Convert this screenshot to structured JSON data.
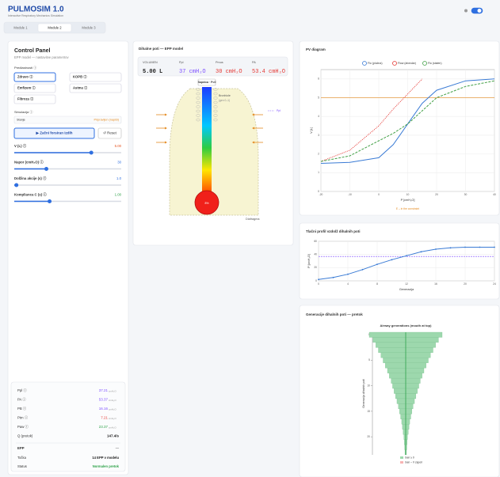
{
  "header": {
    "title": "PULMOSIM 1.0",
    "subtitle": "Interactive Respiratory Mechanics Simulation"
  },
  "tabs": [
    "Module 1",
    "Module 2",
    "Module 3"
  ],
  "control_panel": {
    "title": "Control Panel",
    "subtitle": "EPP model — nastavitve parametrov",
    "presets_label": "Predlastnosti ⓘ",
    "presets": [
      "Zdravo ⓘ",
      "KOPB ⓘ",
      "Emfizem ⓘ",
      "Astma ⓘ",
      "Fibroza ⓘ"
    ],
    "simulation_label": "Simulacija ⓘ",
    "state_label": "Stanje",
    "state_value": "Pripravljen (napiši)",
    "start_button": "▶ Začni forsiran izdih",
    "reset_button": "↺ Reset",
    "sliders": [
      {
        "label": "V (L) ⓘ",
        "value": "5.00"
      },
      {
        "label": "Napor (cmH₂O) ⓘ",
        "value": "30"
      },
      {
        "label": "Dolžina akcije (s) ⓘ",
        "value": "1.0"
      },
      {
        "label": "Komplianca C (s) ⓘ",
        "value": "1.00"
      }
    ],
    "stats": [
      {
        "label": "Ppl ⓘ",
        "value": "37.21",
        "unit": "cmH₂O"
      },
      {
        "label": "PA ⓘ",
        "value": "53.37",
        "unit": "cmH₂O"
      },
      {
        "label": "PB ⓘ",
        "value": "16.16",
        "unit": "cmH₂O"
      },
      {
        "label": "Ptm ⓘ",
        "value": "7.21",
        "unit": "cmH₂O"
      },
      {
        "label": "Paw ⓘ",
        "value": "23.37",
        "unit": "cmH₂O"
      },
      {
        "label": "Q (pretok)",
        "value": "147.4/s",
        "unit": ""
      }
    ],
    "epp": {
      "title": "EPP",
      "value": "—",
      "rows": [
        {
          "label": "Točka",
          "value": "14 EPP v modelu"
        },
        {
          "label": "Status",
          "value": "Normalen pretok"
        }
      ]
    }
  },
  "airway_panel": {
    "title": "Dihalne poti — EPP model",
    "readouts": [
      {
        "label": "VOLUMEN",
        "value": "5.00 L"
      },
      {
        "label": "Ppl",
        "value": "37 cmH₂O"
      },
      {
        "label": "Pmus",
        "value": "30 cmH₂O"
      },
      {
        "label": "PA",
        "value": "53.4 cmH₂O"
      }
    ],
    "trachea_label": "Sapnica · P=0",
    "legend": [
      "Bronhiole",
      "(gen 0–1)"
    ],
    "ppl_legend": "Ppl",
    "alveolus_label": "8%",
    "diaphragm": "Diafragma"
  },
  "chart_data": [
    {
      "type": "line",
      "title": "PV diagram",
      "x": [
        -20,
        -10,
        0,
        5,
        10,
        15,
        20,
        30,
        40
      ],
      "series": [
        {
          "name": "Flo (plučna)",
          "color": "#3a7bd5",
          "dash": "solid",
          "values": [
            1.5,
            1.55,
            1.8,
            2.5,
            3.6,
            4.7,
            5.4,
            5.9,
            6.0
          ]
        },
        {
          "name": "Flow (alveolar)",
          "color": "#e53935",
          "dash": "dotted",
          "values": [
            1.6,
            2.2,
            3.5,
            4.4,
            5.2,
            6.0,
            null,
            null,
            null
          ]
        },
        {
          "name": "Flo (stalen)",
          "color": "#43a047",
          "dash": "dashed",
          "values": [
            1.6,
            1.9,
            2.7,
            3.1,
            3.6,
            4.3,
            5.0,
            5.6,
            5.9
          ]
        }
      ],
      "hline": 5,
      "hline_color": "#e58a1f",
      "annotation": "E – in the constraint",
      "xlabel": "P [cmH₂O]",
      "ylabel": "V [L]",
      "xlim": [
        -20,
        40
      ],
      "ylim": [
        0,
        6.5
      ],
      "xticks": [
        -20,
        -10,
        0,
        10,
        20,
        30,
        40
      ],
      "yticks": [
        0,
        1,
        2,
        3,
        4,
        5,
        6
      ],
      "grid": true
    },
    {
      "type": "line",
      "title": "Tlačni profil vzdolž dihalnih poti",
      "x": [
        0,
        2,
        4,
        6,
        8,
        10,
        12,
        14,
        16,
        18,
        20,
        22,
        24
      ],
      "series": [
        {
          "color": "#3a7bd5",
          "dash": "solid",
          "values": [
            2,
            5,
            10,
            17,
            25,
            32,
            38,
            44,
            48,
            50,
            51,
            51,
            51
          ]
        }
      ],
      "hline": 37,
      "hline_color": "#7c4dff",
      "xlabel": "Generacija",
      "ylabel": "P [cmH₂O]",
      "xlim": [
        0,
        24
      ],
      "ylim": [
        0,
        60
      ],
      "xticks": [
        0,
        4,
        8,
        12,
        16,
        20,
        24
      ],
      "yticks": [
        0,
        20,
        40,
        60
      ],
      "grid": true
    },
    {
      "type": "funnel",
      "title": "Generacije dihalnih poti — pretok",
      "subtitle": "Airway generations (mouth at top)",
      "y": [
        0,
        1,
        2,
        3,
        4,
        5,
        6,
        7,
        8,
        9,
        10,
        11,
        12,
        13,
        14,
        15,
        16,
        17,
        18,
        19,
        20,
        21,
        22,
        23
      ],
      "values": [
        10,
        9,
        8.2,
        7.5,
        6.8,
        6.2,
        5.6,
        5,
        4.5,
        4,
        3.6,
        3.2,
        2.8,
        2.4,
        2,
        1.7,
        1.4,
        1.1,
        0.9,
        0.7,
        0.5,
        0.4,
        0.3,
        0.2
      ],
      "color": "#9dd8ad",
      "xlim": [
        0,
        10
      ],
      "ylim": [
        0,
        24
      ],
      "yticks": [
        0,
        5,
        10,
        15,
        20
      ],
      "ylabel": "Generacija dihalnih poti",
      "legend": [
        {
          "name": "Gen ≥ 0",
          "color": "#9dd8ad"
        },
        {
          "name": "Gen – V zapori",
          "color": "#f8b4b4"
        }
      ]
    }
  ]
}
